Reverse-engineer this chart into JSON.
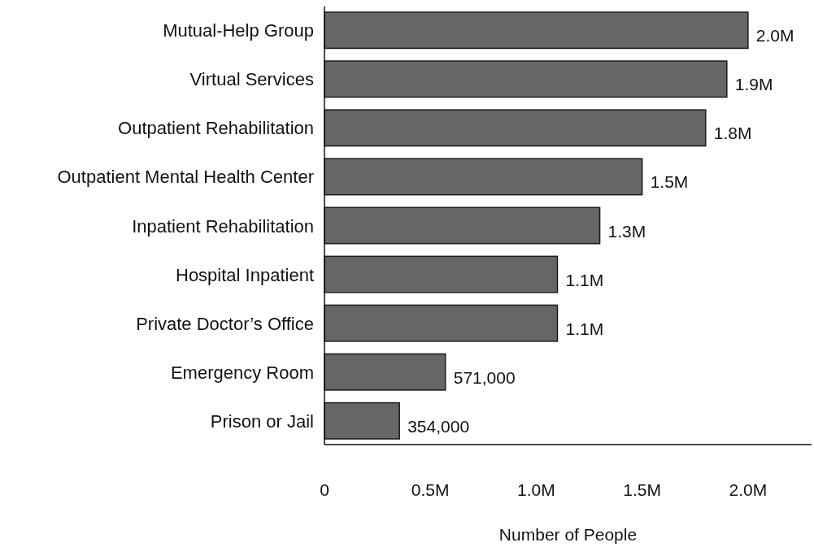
{
  "chart_data": {
    "type": "bar",
    "orientation": "horizontal",
    "xlabel": "Number of People",
    "categories": [
      "Mutual-Help Group",
      "Virtual Services",
      "Outpatient Rehabilitation",
      "Outpatient Mental Health Center",
      "Inpatient Rehabilitation",
      "Hospital Inpatient",
      "Private Doctor’s Office",
      "Emergency Room",
      "Prison or Jail"
    ],
    "values": [
      2000000,
      1900000,
      1800000,
      1500000,
      1300000,
      1100000,
      1100000,
      571000,
      354000
    ],
    "value_labels": [
      "2.0M",
      "1.9M",
      "1.8M",
      "1.5M",
      "1.3M",
      "1.1M",
      "1.1M",
      "571,000",
      "354,000"
    ],
    "color": "#666666",
    "xlim": [
      0,
      2300000
    ],
    "xticks": [
      {
        "value": 0,
        "label": "0"
      },
      {
        "value": 500000,
        "label": "0.5M"
      },
      {
        "value": 1000000,
        "label": "1.0M"
      },
      {
        "value": 1500000,
        "label": "1.5M"
      },
      {
        "value": 2000000,
        "label": "2.0M"
      }
    ],
    "grid": false
  }
}
